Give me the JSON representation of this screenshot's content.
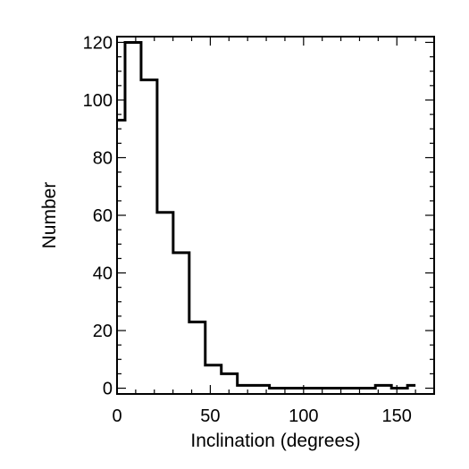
{
  "chart_data": {
    "type": "histogram",
    "xlabel": "Inclination (degrees)",
    "ylabel": "Number",
    "xlim": [
      0,
      170
    ],
    "ylim": [
      -2,
      122
    ],
    "xticks": [
      "0",
      "50",
      "100",
      "150"
    ],
    "yticks": [
      "0",
      "20",
      "40",
      "60",
      "80",
      "100",
      "120"
    ],
    "bin_width": 8.6,
    "bins": [
      {
        "x0": 0,
        "x1": 4.3,
        "value": 93
      },
      {
        "x0": 4.3,
        "x1": 12.9,
        "value": 120
      },
      {
        "x0": 12.9,
        "x1": 21.5,
        "value": 107
      },
      {
        "x0": 21.5,
        "x1": 30.1,
        "value": 61
      },
      {
        "x0": 30.1,
        "x1": 38.7,
        "value": 47
      },
      {
        "x0": 38.7,
        "x1": 47.3,
        "value": 23
      },
      {
        "x0": 47.3,
        "x1": 55.9,
        "value": 8
      },
      {
        "x0": 55.9,
        "x1": 64.5,
        "value": 5
      },
      {
        "x0": 64.5,
        "x1": 73.1,
        "value": 1
      },
      {
        "x0": 73.1,
        "x1": 81.7,
        "value": 1
      },
      {
        "x0": 81.7,
        "x1": 138.5,
        "value": 0
      },
      {
        "x0": 138.5,
        "x1": 147.1,
        "value": 1
      },
      {
        "x0": 147.1,
        "x1": 155.7,
        "value": 0
      },
      {
        "x0": 155.7,
        "x1": 160.0,
        "value": 1
      }
    ],
    "grid": false,
    "legend": "none"
  }
}
